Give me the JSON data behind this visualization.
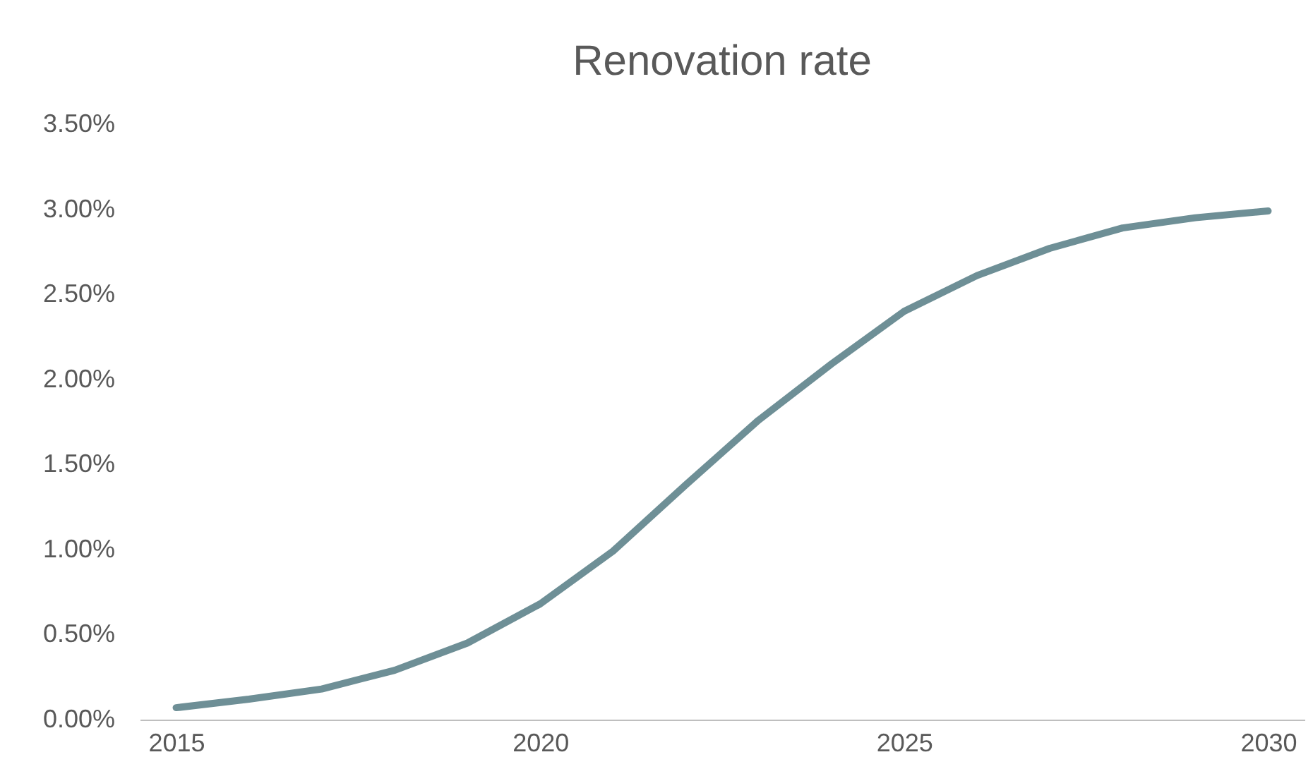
{
  "chart_data": {
    "type": "line",
    "title": "Renovation rate",
    "x": [
      2015,
      2016,
      2017,
      2018,
      2019,
      2020,
      2021,
      2022,
      2023,
      2024,
      2025,
      2026,
      2027,
      2028,
      2029,
      2030
    ],
    "series": [
      {
        "color": "#6e8f96",
        "values": [
          0.07,
          0.12,
          0.18,
          0.29,
          0.45,
          0.68,
          0.99,
          1.38,
          1.76,
          2.09,
          2.4,
          2.61,
          2.77,
          2.89,
          2.95,
          2.99
        ]
      }
    ],
    "xlim": [
      2014.5,
      2030.5
    ],
    "xticks": [
      2015,
      2020,
      2025,
      2030
    ],
    "ylim": [
      0,
      3.5
    ],
    "yticks": [
      {
        "value": 0,
        "label": "0.00%"
      },
      {
        "value": 0.5,
        "label": "0.50%"
      },
      {
        "value": 1,
        "label": "1.00%"
      },
      {
        "value": 1.5,
        "label": "1.50%"
      },
      {
        "value": 2,
        "label": "2.00%"
      },
      {
        "value": 2.5,
        "label": "2.50%"
      },
      {
        "value": 3,
        "label": "3.00%"
      },
      {
        "value": 3.5,
        "label": "3.50%"
      }
    ],
    "grid": false,
    "line_style": "solid"
  }
}
